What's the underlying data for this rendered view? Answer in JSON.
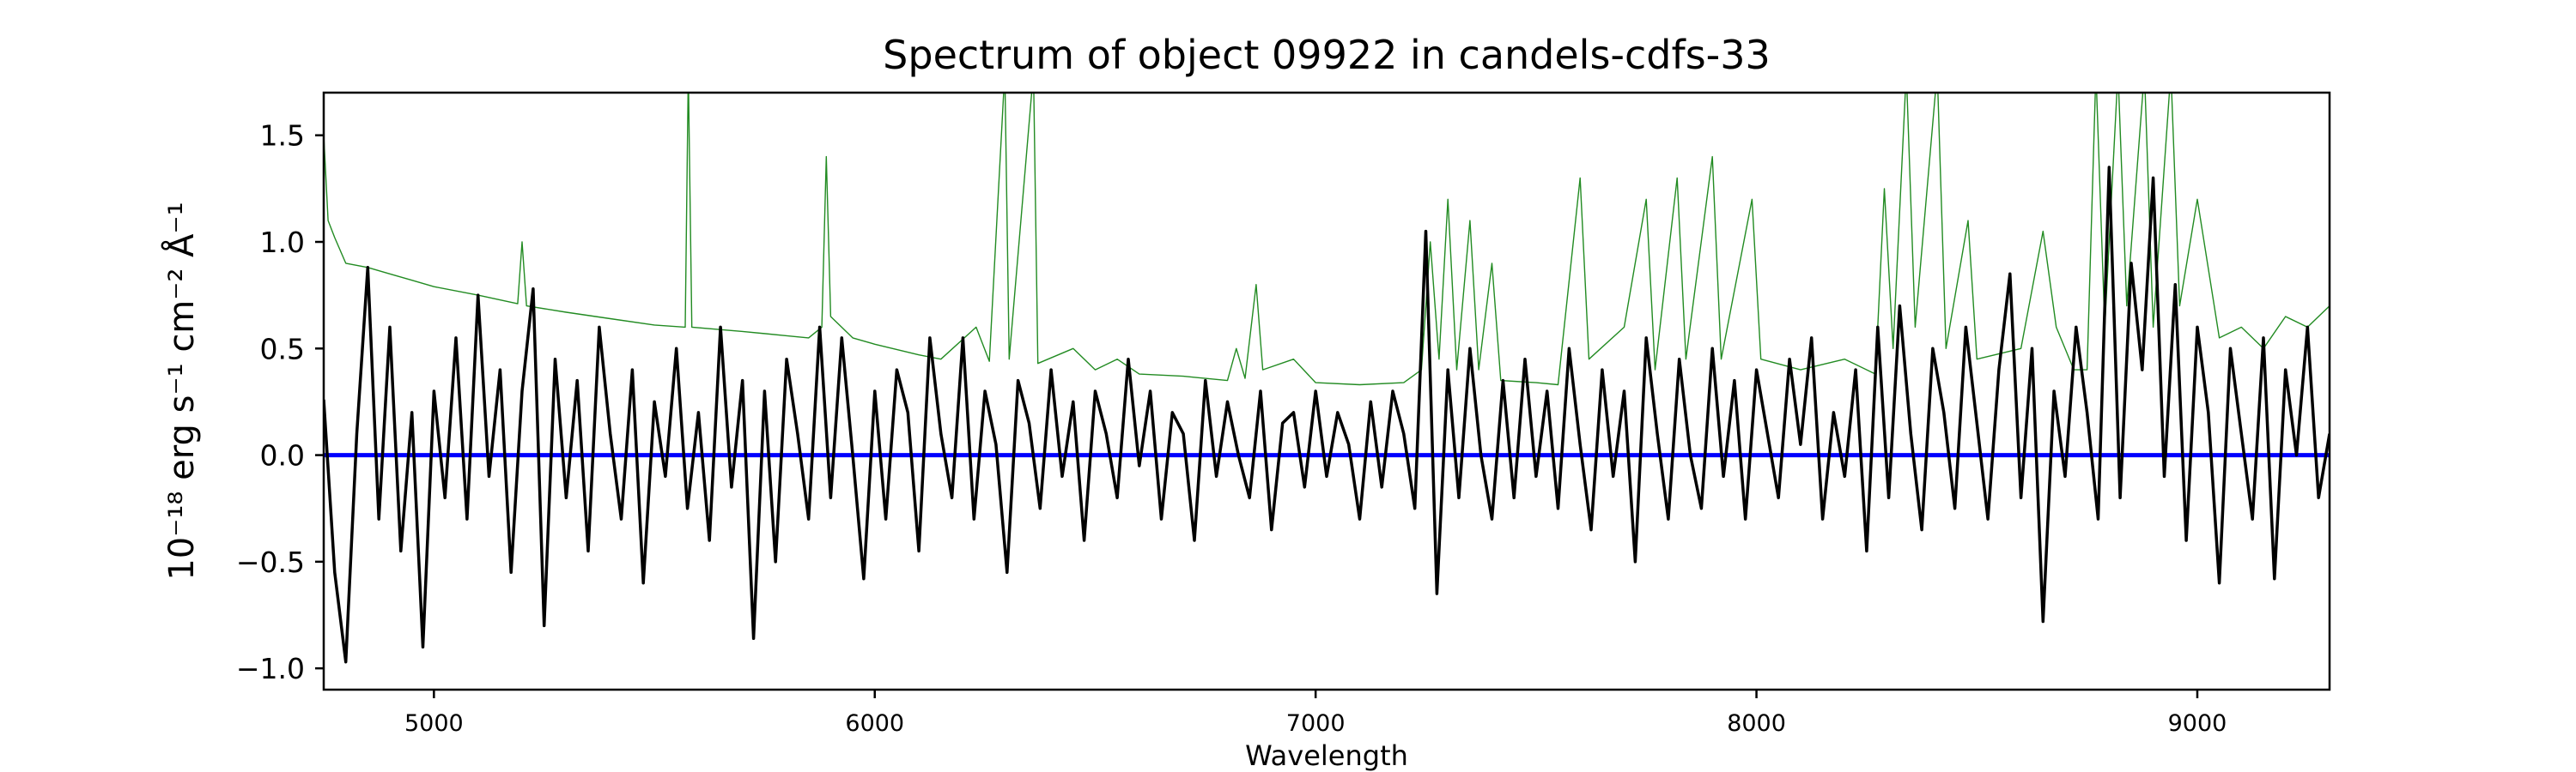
{
  "chart_data": {
    "type": "line",
    "title": "Spectrum of object 09922 in candels-cdfs-33",
    "xlabel": "Wavelength",
    "ylabel": "10⁻¹⁸ erg s⁻¹ cm⁻² Å⁻¹",
    "xlim": [
      4750,
      9300
    ],
    "ylim": [
      -1.1,
      1.7
    ],
    "xticks": [
      5000,
      6000,
      7000,
      8000,
      9000
    ],
    "xtick_labels": [
      "5000",
      "6000",
      "7000",
      "8000",
      "9000"
    ],
    "yticks": [
      -1.0,
      -0.5,
      0.0,
      0.5,
      1.0,
      1.5
    ],
    "ytick_labels": [
      "−1.0",
      "−0.5",
      "0.0",
      "0.5",
      "1.0",
      "1.5"
    ],
    "grid": false,
    "series": [
      {
        "color": "#228b22",
        "points": [
          [
            4750,
            1.5
          ],
          [
            4760,
            1.1
          ],
          [
            4775,
            1.02
          ],
          [
            4800,
            0.9
          ],
          [
            4850,
            0.88
          ],
          [
            4900,
            0.85
          ],
          [
            4950,
            0.82
          ],
          [
            5000,
            0.79
          ],
          [
            5100,
            0.75
          ],
          [
            5190,
            0.71
          ],
          [
            5200,
            1.0
          ],
          [
            5210,
            0.7
          ],
          [
            5300,
            0.67
          ],
          [
            5400,
            0.64
          ],
          [
            5500,
            0.61
          ],
          [
            5570,
            0.6
          ],
          [
            5577,
            1.8
          ],
          [
            5585,
            0.6
          ],
          [
            5700,
            0.58
          ],
          [
            5800,
            0.56
          ],
          [
            5850,
            0.55
          ],
          [
            5880,
            0.6
          ],
          [
            5890,
            1.4
          ],
          [
            5900,
            0.65
          ],
          [
            5950,
            0.55
          ],
          [
            6000,
            0.52
          ],
          [
            6100,
            0.47
          ],
          [
            6150,
            0.45
          ],
          [
            6230,
            0.6
          ],
          [
            6260,
            0.44
          ],
          [
            6295,
            1.8
          ],
          [
            6305,
            0.45
          ],
          [
            6360,
            1.8
          ],
          [
            6370,
            0.43
          ],
          [
            6450,
            0.5
          ],
          [
            6500,
            0.4
          ],
          [
            6550,
            0.45
          ],
          [
            6600,
            0.38
          ],
          [
            6700,
            0.37
          ],
          [
            6800,
            0.35
          ],
          [
            6820,
            0.5
          ],
          [
            6840,
            0.36
          ],
          [
            6865,
            0.8
          ],
          [
            6880,
            0.4
          ],
          [
            6950,
            0.45
          ],
          [
            7000,
            0.34
          ],
          [
            7100,
            0.33
          ],
          [
            7200,
            0.34
          ],
          [
            7240,
            0.4
          ],
          [
            7260,
            1.0
          ],
          [
            7280,
            0.45
          ],
          [
            7300,
            1.2
          ],
          [
            7320,
            0.4
          ],
          [
            7350,
            1.1
          ],
          [
            7370,
            0.4
          ],
          [
            7400,
            0.9
          ],
          [
            7420,
            0.35
          ],
          [
            7500,
            0.34
          ],
          [
            7550,
            0.33
          ],
          [
            7600,
            1.3
          ],
          [
            7620,
            0.45
          ],
          [
            7700,
            0.6
          ],
          [
            7750,
            1.2
          ],
          [
            7770,
            0.4
          ],
          [
            7820,
            1.3
          ],
          [
            7840,
            0.45
          ],
          [
            7900,
            1.4
          ],
          [
            7920,
            0.45
          ],
          [
            7990,
            1.2
          ],
          [
            8010,
            0.45
          ],
          [
            8100,
            0.4
          ],
          [
            8200,
            0.45
          ],
          [
            8270,
            0.38
          ],
          [
            8290,
            1.25
          ],
          [
            8310,
            0.5
          ],
          [
            8340,
            1.8
          ],
          [
            8360,
            0.6
          ],
          [
            8410,
            1.8
          ],
          [
            8430,
            0.5
          ],
          [
            8480,
            1.1
          ],
          [
            8500,
            0.45
          ],
          [
            8600,
            0.5
          ],
          [
            8650,
            1.05
          ],
          [
            8680,
            0.6
          ],
          [
            8720,
            0.4
          ],
          [
            8750,
            0.4
          ],
          [
            8770,
            1.8
          ],
          [
            8790,
            0.6
          ],
          [
            8820,
            1.8
          ],
          [
            8840,
            0.7
          ],
          [
            8880,
            1.8
          ],
          [
            8900,
            0.6
          ],
          [
            8940,
            1.8
          ],
          [
            8960,
            0.7
          ],
          [
            9000,
            1.2
          ],
          [
            9050,
            0.55
          ],
          [
            9100,
            0.6
          ],
          [
            9150,
            0.5
          ],
          [
            9200,
            0.65
          ],
          [
            9250,
            0.6
          ],
          [
            9300,
            0.7
          ]
        ]
      },
      {
        "color": "#0000ff",
        "points": [
          [
            4750,
            0.0
          ],
          [
            9300,
            0.0
          ]
        ]
      },
      {
        "color": "#000000",
        "x_start": 4750,
        "x_step": 25,
        "values": [
          0.26,
          -0.55,
          -0.97,
          0.1,
          0.88,
          -0.3,
          0.6,
          -0.45,
          0.2,
          -0.9,
          0.3,
          -0.2,
          0.55,
          -0.3,
          0.75,
          -0.1,
          0.4,
          -0.55,
          0.3,
          0.78,
          -0.8,
          0.45,
          -0.2,
          0.35,
          -0.45,
          0.6,
          0.1,
          -0.3,
          0.4,
          -0.6,
          0.25,
          -0.1,
          0.5,
          -0.25,
          0.2,
          -0.4,
          0.6,
          -0.15,
          0.35,
          -0.86,
          0.3,
          -0.5,
          0.45,
          0.1,
          -0.3,
          0.6,
          -0.2,
          0.55,
          0.0,
          -0.58,
          0.3,
          -0.3,
          0.4,
          0.2,
          -0.45,
          0.55,
          0.1,
          -0.2,
          0.55,
          -0.3,
          0.3,
          0.05,
          -0.55,
          0.35,
          0.15,
          -0.25,
          0.4,
          -0.1,
          0.25,
          -0.4,
          0.3,
          0.1,
          -0.2,
          0.45,
          -0.05,
          0.3,
          -0.3,
          0.2,
          0.1,
          -0.4,
          0.35,
          -0.1,
          0.25,
          0.0,
          -0.2,
          0.3,
          -0.35,
          0.15,
          0.2,
          -0.15,
          0.3,
          -0.1,
          0.2,
          0.05,
          -0.3,
          0.25,
          -0.15,
          0.3,
          0.1,
          -0.25,
          1.05,
          -0.65,
          0.4,
          -0.2,
          0.5,
          0.0,
          -0.3,
          0.35,
          -0.2,
          0.45,
          -0.1,
          0.3,
          -0.25,
          0.5,
          0.05,
          -0.35,
          0.4,
          -0.1,
          0.3,
          -0.5,
          0.55,
          0.1,
          -0.3,
          0.45,
          0.0,
          -0.25,
          0.5,
          -0.1,
          0.35,
          -0.3,
          0.4,
          0.1,
          -0.2,
          0.45,
          0.05,
          0.55,
          -0.3,
          0.2,
          -0.1,
          0.4,
          -0.45,
          0.6,
          -0.2,
          0.7,
          0.1,
          -0.35,
          0.5,
          0.2,
          -0.25,
          0.6,
          0.15,
          -0.3,
          0.4,
          0.85,
          -0.2,
          0.5,
          -0.78,
          0.3,
          -0.1,
          0.6,
          0.2,
          -0.3,
          1.35,
          -0.2,
          0.9,
          0.4,
          1.3,
          -0.1,
          0.8,
          -0.4,
          0.6,
          0.2,
          -0.6,
          0.5,
          0.1,
          -0.3,
          0.55,
          -0.58,
          0.4,
          0.0,
          0.6,
          -0.2,
          0.1
        ]
      }
    ]
  }
}
